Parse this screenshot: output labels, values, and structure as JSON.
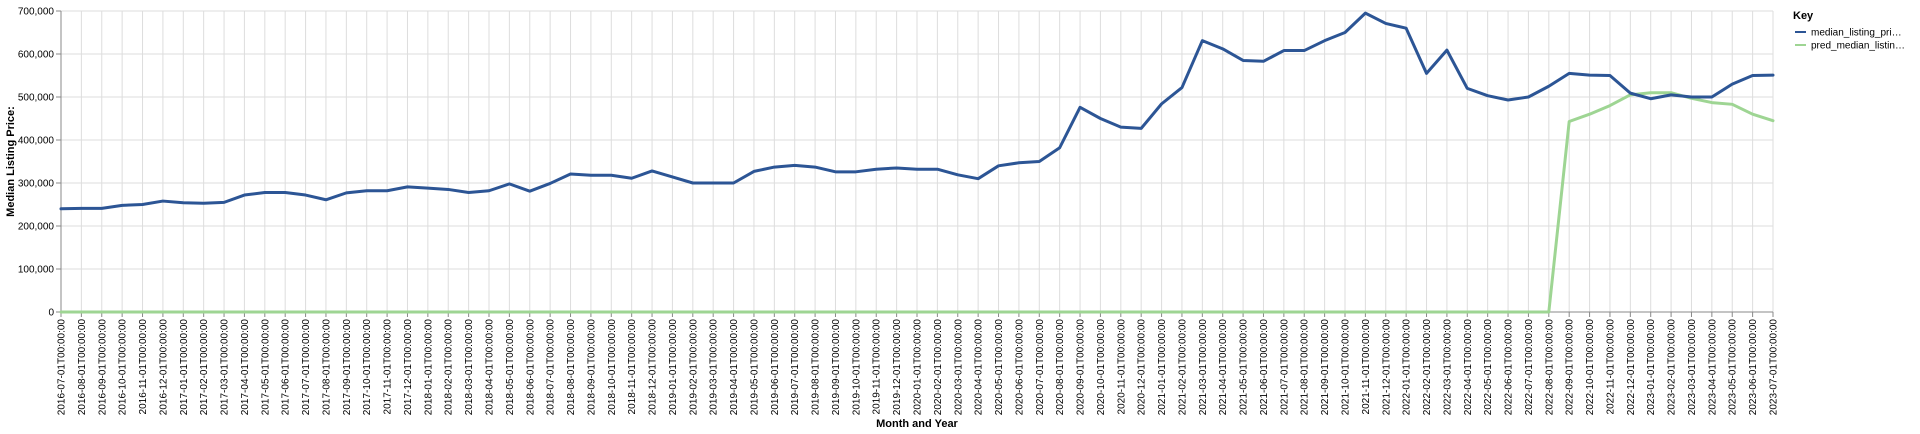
{
  "chart_data": {
    "type": "line",
    "xlabel": "Month and Year",
    "ylabel": "Median Listing Price:",
    "ylim": [
      0,
      700000
    ],
    "yticks": [
      0,
      100000,
      200000,
      300000,
      400000,
      500000,
      600000,
      700000
    ],
    "ytick_labels": [
      "0",
      "100,000",
      "200,000",
      "300,000",
      "400,000",
      "500,000",
      "600,000",
      "700,000"
    ],
    "grid": true,
    "legend": {
      "title": "Key",
      "placement": "top-right"
    },
    "x": [
      "2016-07-01T00:00:00",
      "2016-08-01T00:00:00",
      "2016-09-01T00:00:00",
      "2016-10-01T00:00:00",
      "2016-11-01T00:00:00",
      "2016-12-01T00:00:00",
      "2017-01-01T00:00:00",
      "2017-02-01T00:00:00",
      "2017-03-01T00:00:00",
      "2017-04-01T00:00:00",
      "2017-05-01T00:00:00",
      "2017-06-01T00:00:00",
      "2017-07-01T00:00:00",
      "2017-08-01T00:00:00",
      "2017-09-01T00:00:00",
      "2017-10-01T00:00:00",
      "2017-11-01T00:00:00",
      "2017-12-01T00:00:00",
      "2018-01-01T00:00:00",
      "2018-02-01T00:00:00",
      "2018-03-01T00:00:00",
      "2018-04-01T00:00:00",
      "2018-05-01T00:00:00",
      "2018-06-01T00:00:00",
      "2018-07-01T00:00:00",
      "2018-08-01T00:00:00",
      "2018-09-01T00:00:00",
      "2018-10-01T00:00:00",
      "2018-11-01T00:00:00",
      "2018-12-01T00:00:00",
      "2019-01-01T00:00:00",
      "2019-02-01T00:00:00",
      "2019-03-01T00:00:00",
      "2019-04-01T00:00:00",
      "2019-05-01T00:00:00",
      "2019-06-01T00:00:00",
      "2019-07-01T00:00:00",
      "2019-08-01T00:00:00",
      "2019-09-01T00:00:00",
      "2019-10-01T00:00:00",
      "2019-11-01T00:00:00",
      "2019-12-01T00:00:00",
      "2020-01-01T00:00:00",
      "2020-02-01T00:00:00",
      "2020-03-01T00:00:00",
      "2020-04-01T00:00:00",
      "2020-05-01T00:00:00",
      "2020-06-01T00:00:00",
      "2020-07-01T00:00:00",
      "2020-08-01T00:00:00",
      "2020-09-01T00:00:00",
      "2020-10-01T00:00:00",
      "2020-11-01T00:00:00",
      "2020-12-01T00:00:00",
      "2021-01-01T00:00:00",
      "2021-02-01T00:00:00",
      "2021-03-01T00:00:00",
      "2021-04-01T00:00:00",
      "2021-05-01T00:00:00",
      "2021-06-01T00:00:00",
      "2021-07-01T00:00:00",
      "2021-08-01T00:00:00",
      "2021-09-01T00:00:00",
      "2021-10-01T00:00:00",
      "2021-11-01T00:00:00",
      "2021-12-01T00:00:00",
      "2022-01-01T00:00:00",
      "2022-02-01T00:00:00",
      "2022-03-01T00:00:00",
      "2022-04-01T00:00:00",
      "2022-05-01T00:00:00",
      "2022-06-01T00:00:00",
      "2022-07-01T00:00:00",
      "2022-08-01T00:00:00",
      "2022-09-01T00:00:00",
      "2022-10-01T00:00:00",
      "2022-11-01T00:00:00",
      "2022-12-01T00:00:00",
      "2023-01-01T00:00:00",
      "2023-02-01T00:00:00",
      "2023-03-01T00:00:00",
      "2023-04-01T00:00:00",
      "2023-05-01T00:00:00",
      "2023-06-01T00:00:00",
      "2023-07-01T00:00:00"
    ],
    "series": [
      {
        "name": "median_listing_pri…",
        "color": "#2c5595",
        "values": [
          240000,
          241000,
          241000,
          248000,
          250000,
          258000,
          254000,
          253000,
          255000,
          272000,
          278000,
          278000,
          272000,
          261000,
          277000,
          282000,
          282000,
          291000,
          288000,
          285000,
          278000,
          282000,
          298000,
          281000,
          299000,
          321000,
          318000,
          318000,
          311000,
          328000,
          314000,
          300000,
          300000,
          300000,
          327000,
          337000,
          341000,
          337000,
          326000,
          326000,
          332000,
          335000,
          332000,
          332000,
          319000,
          310000,
          340000,
          347000,
          350000,
          382000,
          476000,
          450000,
          430000,
          427000,
          484000,
          522000,
          631000,
          612000,
          585000,
          583000,
          608000,
          608000,
          631000,
          650000,
          695000,
          671000,
          660000,
          555000,
          609000,
          520000,
          503000,
          493000,
          500000,
          525000,
          555000,
          551000,
          550000,
          509000,
          496000,
          505000,
          500000,
          500000,
          530000,
          550000,
          551000
        ]
      },
      {
        "name": "pred_median_listin…",
        "color": "#9ed593",
        "values": [
          0,
          0,
          0,
          0,
          0,
          0,
          0,
          0,
          0,
          0,
          0,
          0,
          0,
          0,
          0,
          0,
          0,
          0,
          0,
          0,
          0,
          0,
          0,
          0,
          0,
          0,
          0,
          0,
          0,
          0,
          0,
          0,
          0,
          0,
          0,
          0,
          0,
          0,
          0,
          0,
          0,
          0,
          0,
          0,
          0,
          0,
          0,
          0,
          0,
          0,
          0,
          0,
          0,
          0,
          0,
          0,
          0,
          0,
          0,
          0,
          0,
          0,
          0,
          0,
          0,
          0,
          0,
          0,
          0,
          0,
          0,
          0,
          0,
          0,
          443000,
          460000,
          480000,
          505000,
          510000,
          510000,
          497000,
          487000,
          483000,
          460000,
          445000
        ]
      }
    ]
  }
}
